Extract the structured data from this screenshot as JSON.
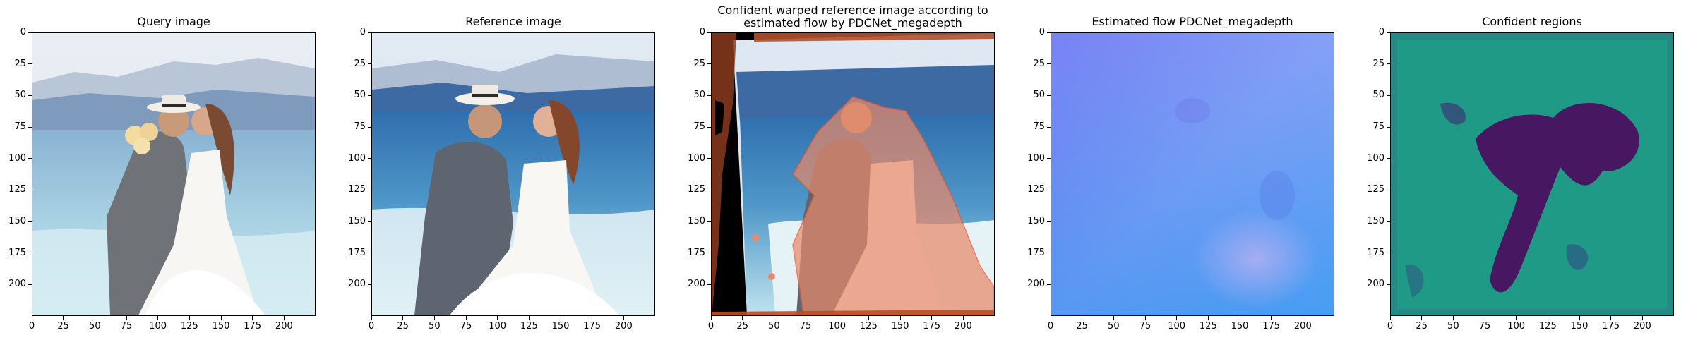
{
  "figure": {
    "panels": [
      {
        "title": "Query image",
        "kind": "query-photo"
      },
      {
        "title": "Reference image",
        "kind": "reference-photo"
      },
      {
        "title": "Confident warped reference image according to\nestimated flow by PDCNet_megadepth",
        "kind": "warped-photo"
      },
      {
        "title": "Estimated flow PDCNet_megadepth",
        "kind": "flow-field"
      },
      {
        "title": "Confident regions",
        "kind": "confidence-map"
      }
    ],
    "xticks": [
      "0",
      "25",
      "50",
      "75",
      "100",
      "125",
      "150",
      "175",
      "200"
    ],
    "yticks": [
      "0",
      "25",
      "50",
      "75",
      "100",
      "125",
      "150",
      "175",
      "200"
    ]
  },
  "colors": {
    "confident_bg": "#1f9a86",
    "low_confidence": "#440a5c",
    "overlay": "#e8896a",
    "flow_left": "#4f6ff2",
    "flow_right": "#63b7f8"
  }
}
